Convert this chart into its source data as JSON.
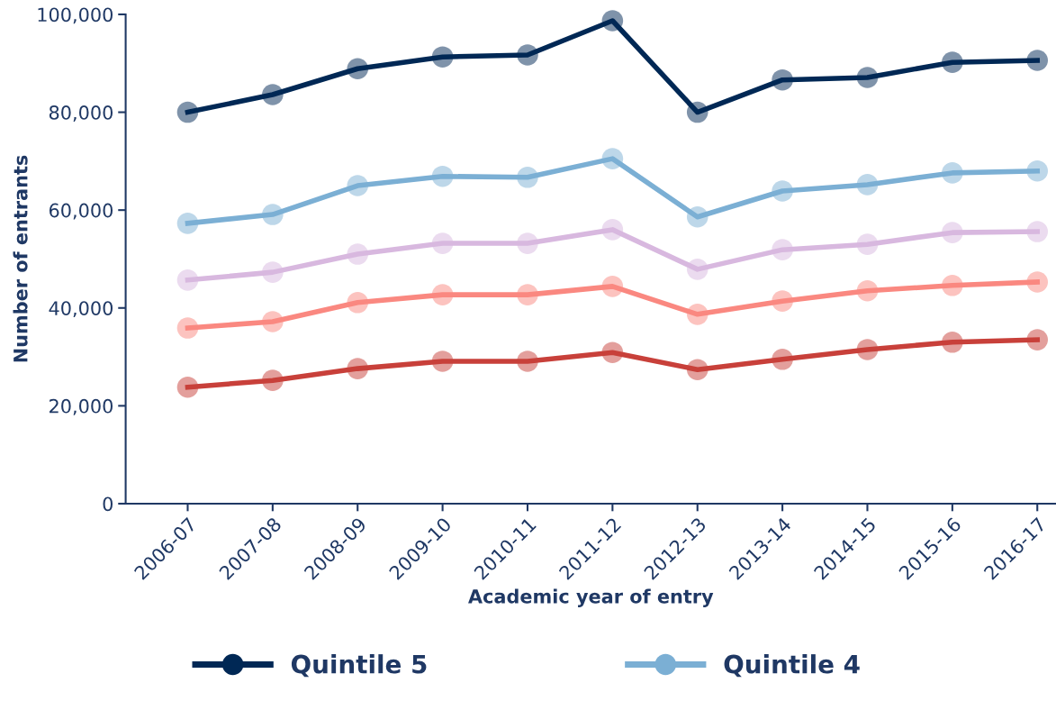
{
  "chart_data": {
    "type": "line",
    "xlabel": "Academic year of entry",
    "ylabel": "Number of entrants",
    "categories": [
      "2006-07",
      "2007-08",
      "2008-09",
      "2009-10",
      "2010-11",
      "2011-12",
      "2012-13",
      "2013-14",
      "2014-15",
      "2015-16",
      "2016-17"
    ],
    "series": [
      {
        "name": "Quintile 5",
        "color": "#002855",
        "values": [
          80000,
          83600,
          88900,
          91300,
          91700,
          98700,
          80000,
          86600,
          87100,
          90200,
          90600
        ]
      },
      {
        "name": "Quintile 4",
        "color": "#7bafd4",
        "values": [
          57300,
          59100,
          65000,
          66900,
          66700,
          70500,
          58600,
          63900,
          65200,
          67600,
          68000
        ]
      },
      {
        "color": "#d8b8df",
        "values": [
          45700,
          47300,
          51000,
          53200,
          53200,
          56000,
          47900,
          51900,
          53000,
          55400,
          55600
        ]
      },
      {
        "color": "#fa8880",
        "values": [
          35900,
          37200,
          41100,
          42700,
          42700,
          44400,
          38700,
          41400,
          43500,
          44600,
          45300
        ]
      },
      {
        "color": "#c8403a",
        "values": [
          23800,
          25200,
          27600,
          29100,
          29100,
          30900,
          27400,
          29500,
          31500,
          33000,
          33500
        ]
      }
    ],
    "ylim": [
      0,
      100000
    ],
    "yticks": [
      0,
      {
        "value": 20000,
        "label": "20,000"
      },
      {
        "value": 40000,
        "label": "40,000"
      },
      {
        "value": 60000,
        "label": "60,000"
      },
      {
        "value": 80000,
        "label": "80,000"
      },
      {
        "value": 100000,
        "label": "100,000"
      }
    ],
    "grid": false,
    "legend": "bottom",
    "marker": "circle",
    "line_style": "solid"
  }
}
